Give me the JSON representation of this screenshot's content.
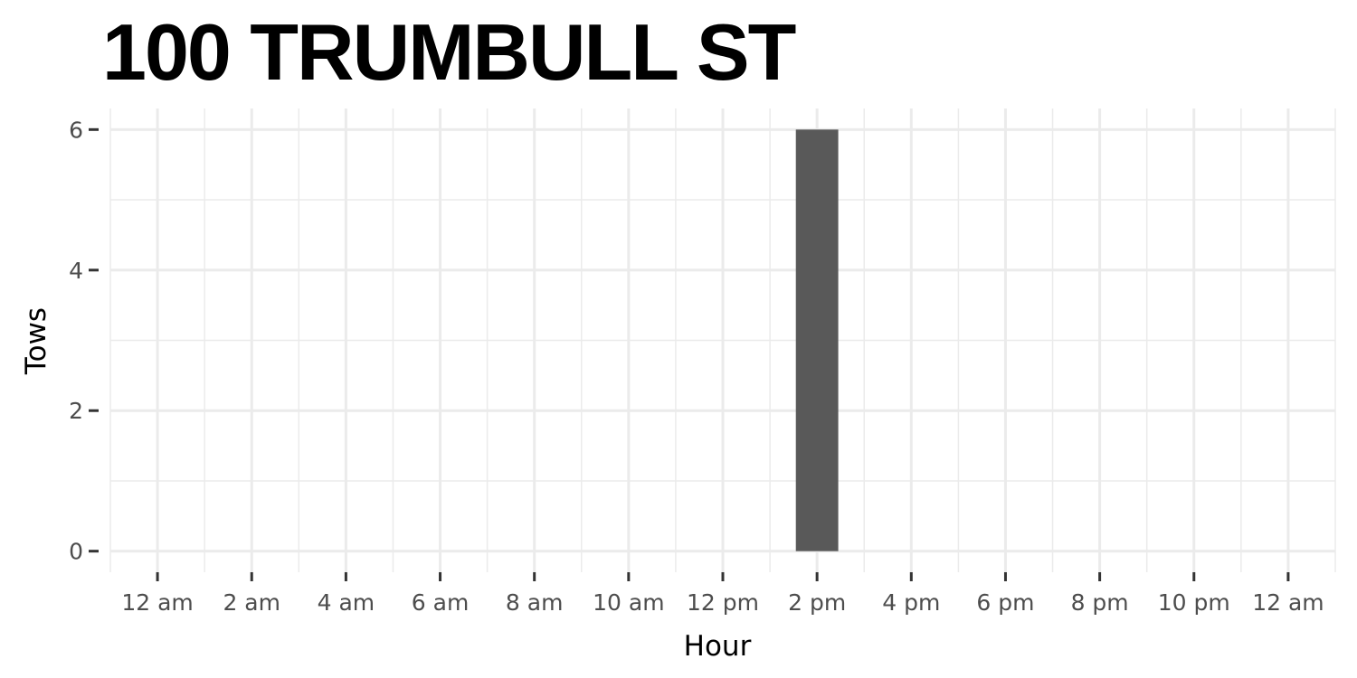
{
  "chart_data": {
    "type": "bar",
    "title": "100 TRUMBULL ST",
    "xlabel": "Hour",
    "ylabel": "Tows",
    "x_tick_labels": [
      "12 am",
      "2 am",
      "4 am",
      "6 am",
      "8 am",
      "10 am",
      "12 pm",
      "2 pm",
      "4 pm",
      "6 pm",
      "8 pm",
      "10 pm",
      "12 am"
    ],
    "x_tick_hours": [
      0,
      2,
      4,
      6,
      8,
      10,
      12,
      14,
      16,
      18,
      20,
      22,
      24
    ],
    "xlim": [
      -1.0,
      25.0
    ],
    "ylim": [
      -0.3,
      6.3
    ],
    "y_ticks": [
      0,
      2,
      4,
      6
    ],
    "y_tick_labels": [
      "0",
      "2",
      "4",
      "6"
    ],
    "bars": [
      {
        "hour": 14,
        "value": 6
      }
    ],
    "bar_width_hours": 0.9,
    "bar_color": "#595959",
    "grid": true,
    "grid_color": "#ebebeb",
    "legend": "none"
  }
}
